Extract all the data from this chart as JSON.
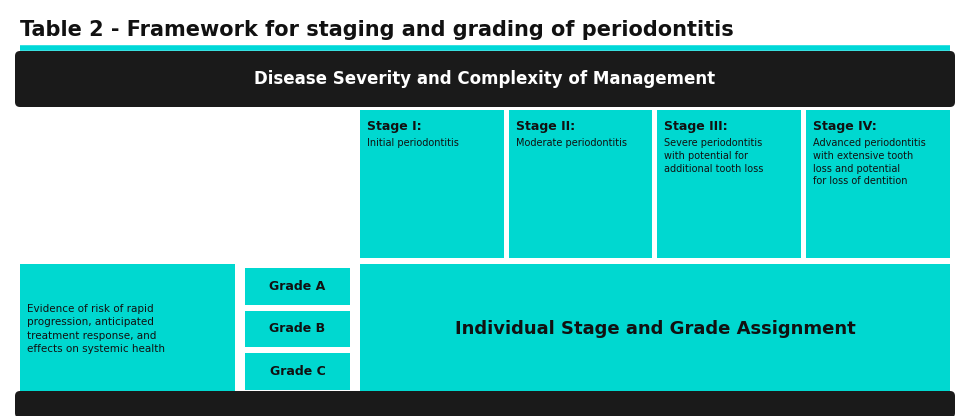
{
  "title": "Table 2 - Framework for staging and grading of periodontitis",
  "title_color": "#111111",
  "title_fontsize": 15,
  "underline_color": "#00d8d8",
  "bg_color": "#ffffff",
  "dark_bar_color": "#1a1a1a",
  "cyan_color": "#00d8d0",
  "severity_header": "Disease Severity and Complexity of Management",
  "stages": [
    "Stage I:",
    "Stage II:",
    "Stage III:",
    "Stage IV:"
  ],
  "stage_subtitles": [
    "Initial periodontitis",
    "Moderate periodontitis",
    "Severe periodontitis\nwith potential for\nadditional tooth loss",
    "Advanced periodontitis\nwith extensive tooth\nloss and potential\nfor loss of dentition"
  ],
  "left_label": "Evidence of risk of rapid\nprogression, anticipated\ntreatment response, and\neffects on systemic health",
  "grades": [
    "Grade A",
    "Grade B",
    "Grade C"
  ],
  "individual_label": "Individual Stage and Grade Assignment",
  "fig_w": 9.7,
  "fig_h": 4.16,
  "dpi": 100
}
